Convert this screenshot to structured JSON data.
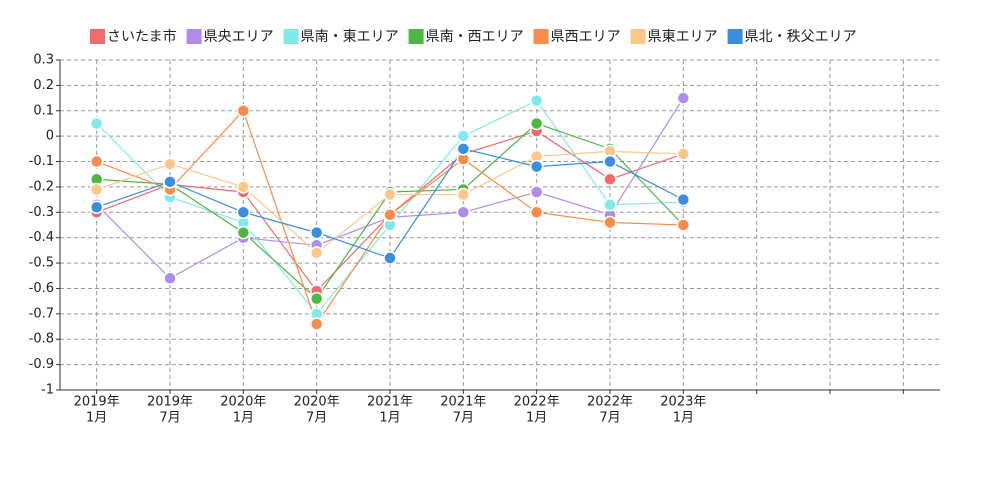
{
  "chart_data": {
    "type": "line",
    "categories": [
      [
        "2019年",
        "1月"
      ],
      [
        "2019年",
        "7月"
      ],
      [
        "2020年",
        "1月"
      ],
      [
        "2020年",
        "7月"
      ],
      [
        "2021年",
        "1月"
      ],
      [
        "2021年",
        "7月"
      ],
      [
        "2022年",
        "1月"
      ],
      [
        "2022年",
        "7月"
      ],
      [
        "2023年",
        "1月"
      ],
      null,
      null,
      null
    ],
    "series": [
      {
        "name": "さいたま市",
        "color": "#f06b6b",
        "values": [
          -0.3,
          -0.19,
          -0.22,
          -0.61,
          -0.31,
          -0.07,
          0.02,
          -0.17,
          -0.07,
          null,
          null,
          null
        ]
      },
      {
        "name": "県央エリア",
        "color": "#b08cea",
        "values": [
          -0.27,
          -0.56,
          -0.4,
          -0.43,
          -0.32,
          -0.3,
          -0.22,
          -0.31,
          0.15,
          null,
          null,
          null
        ]
      },
      {
        "name": "県南・東エリア",
        "color": "#7eeaea",
        "values": [
          0.05,
          -0.24,
          -0.34,
          -0.7,
          -0.35,
          0.0,
          0.14,
          -0.27,
          -0.26,
          null,
          null,
          null
        ]
      },
      {
        "name": "県南・西エリア",
        "color": "#4cb842",
        "values": [
          -0.17,
          -0.19,
          -0.38,
          -0.64,
          -0.22,
          -0.21,
          0.05,
          -0.05,
          -0.35,
          null,
          null,
          null
        ]
      },
      {
        "name": "県西エリア",
        "color": "#f98c4a",
        "values": [
          -0.1,
          -0.21,
          0.1,
          -0.74,
          -0.31,
          -0.09,
          -0.3,
          -0.34,
          -0.35,
          null,
          null,
          null
        ]
      },
      {
        "name": "県東エリア",
        "color": "#fcc88a",
        "values": [
          -0.21,
          -0.11,
          -0.2,
          -0.46,
          -0.23,
          -0.23,
          -0.08,
          -0.06,
          -0.07,
          null,
          null,
          null
        ]
      },
      {
        "name": "県北・秩父エリア",
        "color": "#3a8ee0",
        "values": [
          -0.28,
          -0.18,
          -0.3,
          -0.38,
          -0.48,
          -0.05,
          -0.12,
          -0.1,
          -0.25,
          null,
          null,
          null
        ]
      }
    ],
    "ylim": [
      -1,
      0.3
    ],
    "yticks": [
      -1,
      -0.9,
      -0.8,
      -0.7,
      -0.6,
      -0.5,
      -0.4,
      -0.3,
      -0.2,
      -0.1,
      0,
      0.1,
      0.2,
      0.3
    ],
    "grid": true,
    "legend": "top"
  }
}
